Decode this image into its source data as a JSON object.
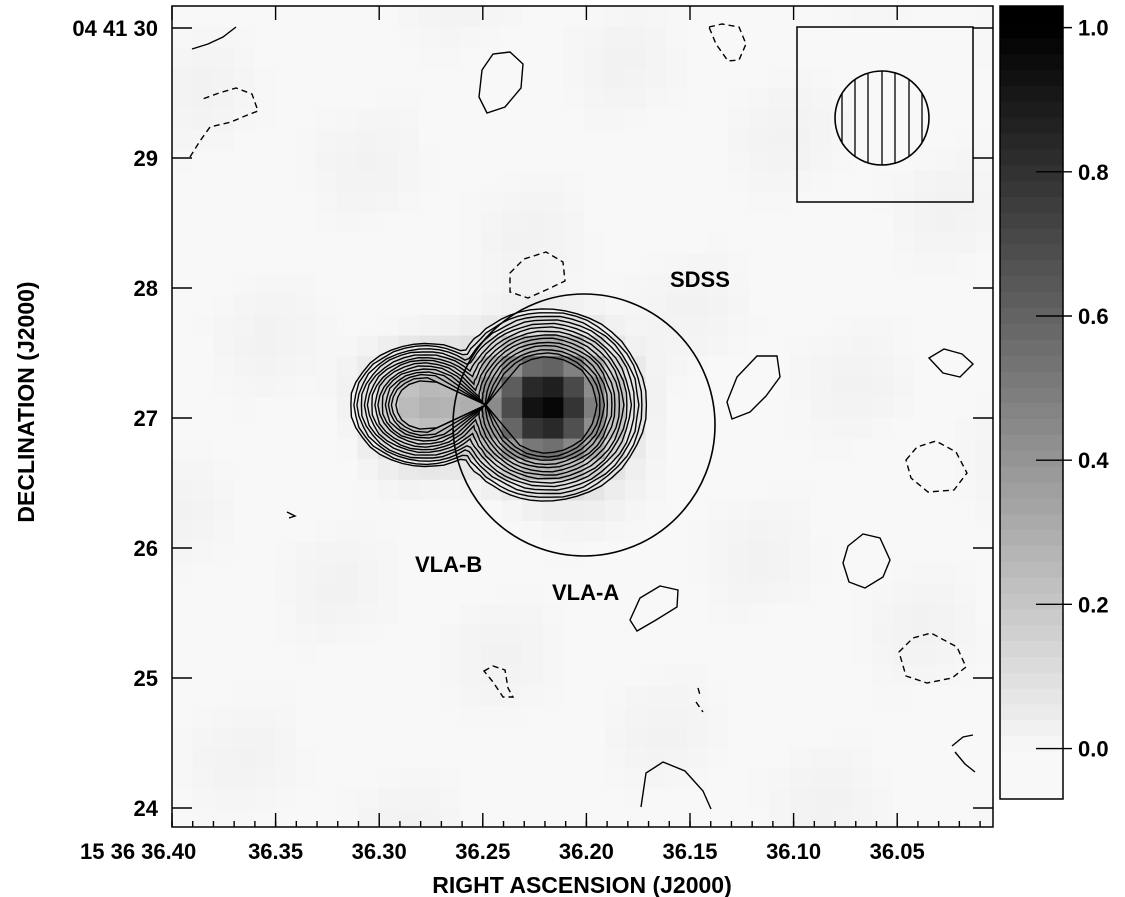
{
  "chart_data": {
    "type": "heatmap",
    "title": "",
    "xlabel": "RIGHT ASCENSION (J2000)",
    "ylabel": "DECLINATION (J2000)",
    "x_ticks": [
      "15 36 36.40",
      "36.35",
      "36.30",
      "36.25",
      "36.20",
      "36.15",
      "36.10",
      "36.05"
    ],
    "x_tick_values_sec": [
      36.4,
      36.35,
      36.3,
      36.25,
      36.2,
      36.15,
      36.1,
      36.05
    ],
    "xlim_sec": [
      36.4,
      36.0
    ],
    "y_ticks": [
      "04 41 30",
      "29",
      "28",
      "27",
      "26",
      "25",
      "24"
    ],
    "y_tick_values_arcsec": [
      30,
      29,
      28,
      27,
      26,
      25,
      24
    ],
    "ylim_arcsec": [
      23.9,
      30.1
    ],
    "colorbar": {
      "ticks": [
        "1.0",
        "0.8",
        "0.6",
        "0.4",
        "0.2",
        "0.0"
      ],
      "tick_values": [
        1.0,
        0.8,
        0.6,
        0.4,
        0.2,
        0.0
      ],
      "range": [
        -0.07,
        1.03
      ]
    },
    "sources": [
      {
        "label": "VLA-A",
        "ra_sec": 36.219,
        "dec_arcsec": 27.1,
        "peak": 1.0
      },
      {
        "label": "VLA-B",
        "ra_sec": 36.278,
        "dec_arcsec": 27.1,
        "peak": 0.25
      }
    ],
    "annotations": [
      {
        "text": "SDSS",
        "ra_sec": 36.152,
        "dec_arcsec": 28.0
      },
      {
        "text": "VLA-B",
        "ra_sec": 36.271,
        "dec_arcsec": 25.86
      },
      {
        "text": "VLA-A",
        "ra_sec": 36.199,
        "dec_arcsec": 25.64
      }
    ],
    "sdss_circle": {
      "ra_sec": 36.199,
      "dec_arcsec": 26.98,
      "radius_arcsec": 1.0
    },
    "beam": {
      "shape": "circle",
      "hatched": true
    }
  }
}
